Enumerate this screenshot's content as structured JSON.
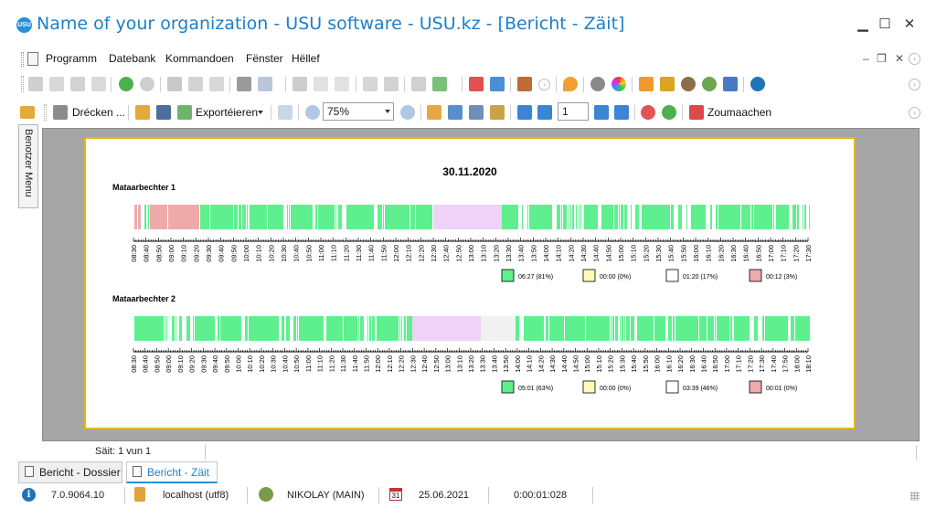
{
  "window": {
    "title": "Name of your organization - USU software - USU.kz - [Bericht - Zäit]",
    "logo_text": "USU",
    "minimize": "▁",
    "maximize": "☐",
    "close": "✕"
  },
  "menu": {
    "items": [
      "Programm",
      "Datebank",
      "Kommandoen",
      "Fënster",
      "Hëllef"
    ],
    "mdi_minimize": "‒",
    "mdi_restore": "❐",
    "mdi_close": "✕"
  },
  "toolbar2": {
    "print_label": "Drécken ...",
    "export_label": "Exportéieren",
    "zoom_value": "75%",
    "page_value": "1",
    "close_label": "Zoumaachen"
  },
  "side_panel": {
    "tab_label": "Benotzer Menu"
  },
  "report": {
    "date": "30.11.2020",
    "colors": {
      "green": "#5ef08e",
      "yellow": "#fffbb8",
      "white": "#ffffff",
      "pink": "#eeaaaa",
      "lilac": "#eed2f7",
      "grey": "#f1f1f1",
      "frame": "#e8b416"
    },
    "employees": [
      {
        "name": "Mataarbechter 1",
        "ticks": [
          "08:30",
          "08:40",
          "08:50",
          "09:00",
          "09:10",
          "09:20",
          "09:30",
          "09:40",
          "09:50",
          "10:00",
          "10:10",
          "10:20",
          "10:30",
          "10:40",
          "10:50",
          "11:00",
          "11:10",
          "11:20",
          "11:30",
          "11:40",
          "11:50",
          "12:00",
          "12:10",
          "12:20",
          "12:30",
          "12:40",
          "12:50",
          "13:00",
          "13:10",
          "13:20",
          "13:30",
          "13:40",
          "13:50",
          "14:00",
          "14:10",
          "14:20",
          "14:30",
          "14:40",
          "14:50",
          "15:00",
          "15:10",
          "15:20",
          "15:30",
          "15:40",
          "15:50",
          "16:00",
          "16:10",
          "16:20",
          "16:30",
          "16:40",
          "16:50",
          "17:00",
          "17:10",
          "17:20",
          "17:30"
        ],
        "legend": [
          "06:27 (81%)",
          "00:00 (0%)",
          "01:20 (17%)",
          "00:12 (3%)"
        ]
      },
      {
        "name": "Mataarbechter 2",
        "ticks": [
          "08:30",
          "08:40",
          "08:50",
          "09:00",
          "09:10",
          "09:20",
          "09:30",
          "09:40",
          "09:50",
          "10:00",
          "10:10",
          "10:20",
          "10:30",
          "10:40",
          "10:50",
          "11:00",
          "11:10",
          "11:20",
          "11:30",
          "11:40",
          "11:50",
          "12:00",
          "12:10",
          "12:20",
          "12:30",
          "12:40",
          "12:50",
          "13:00",
          "13:10",
          "13:20",
          "13:30",
          "13:40",
          "13:50",
          "14:00",
          "14:10",
          "14:20",
          "14:30",
          "14:40",
          "14:50",
          "15:00",
          "15:10",
          "15:20",
          "15:30",
          "15:40",
          "15:50",
          "16:00",
          "16:10",
          "16:20",
          "16:30",
          "16:40",
          "16:50",
          "17:00",
          "17:10",
          "17:20",
          "17:30",
          "17:40",
          "17:50",
          "18:00",
          "18:10"
        ],
        "legend": [
          "05:01 (63%)",
          "00:00 (0%)",
          "03:39 (46%)",
          "00:01 (0%)"
        ]
      }
    ]
  },
  "page_status": "Säit: 1 vun 1",
  "tabs": [
    {
      "label": "Bericht - Dossier",
      "active": false
    },
    {
      "label": "Bericht - Zäit",
      "active": true
    }
  ],
  "statusbar": {
    "version": "7.0.9064.10",
    "database": "localhost (utf8)",
    "user": "NIKOLAY (MAIN)",
    "calendar_day": "31",
    "date": "25.06.2021",
    "timer": "0:00:01:028"
  }
}
